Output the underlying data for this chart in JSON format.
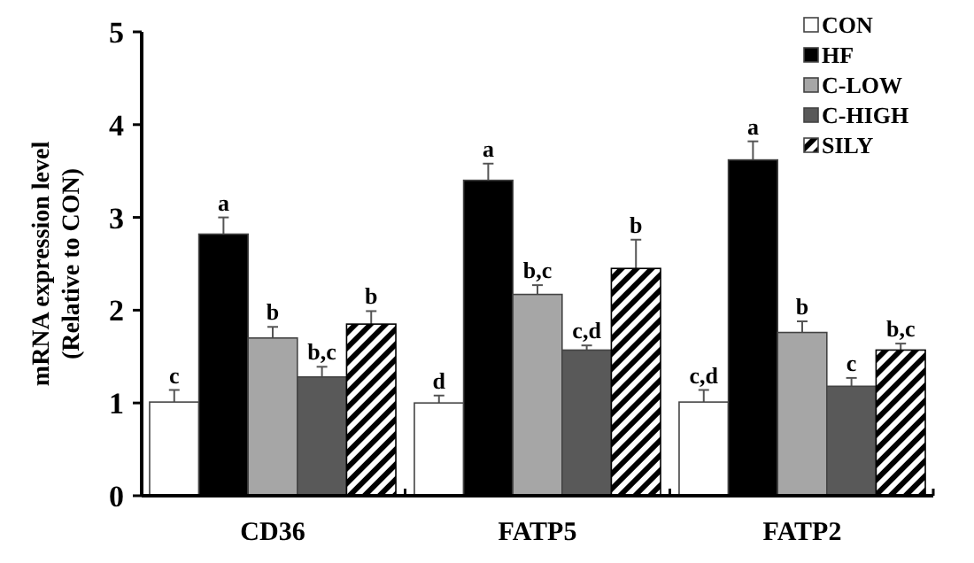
{
  "chart_data": {
    "type": "bar",
    "ylabel": "mRNA expression  level\n(Relative to CON)",
    "categories": [
      "CD36",
      "FATP5",
      "FATP2"
    ],
    "series": [
      {
        "name": "CON",
        "color": "#ffffff",
        "values": [
          1.01,
          1.0,
          1.01
        ],
        "errors": [
          0.13,
          0.08,
          0.13
        ],
        "value_labels": [
          "c",
          "d",
          "c,d"
        ]
      },
      {
        "name": "HF",
        "color": "#000000",
        "values": [
          2.82,
          3.4,
          3.62
        ],
        "errors": [
          0.18,
          0.18,
          0.2
        ],
        "value_labels": [
          "a",
          "a",
          "a"
        ]
      },
      {
        "name": "C-LOW",
        "color": "#a6a6a6",
        "values": [
          1.7,
          2.17,
          1.76
        ],
        "errors": [
          0.12,
          0.1,
          0.12
        ],
        "value_labels": [
          "b",
          "b,c",
          "b"
        ]
      },
      {
        "name": "C-HIGH",
        "color": "#595959",
        "values": [
          1.28,
          1.57,
          1.18
        ],
        "errors": [
          0.11,
          0.05,
          0.09
        ],
        "value_labels": [
          "b,c",
          "c,d",
          "c"
        ]
      },
      {
        "name": "SILY",
        "color": "#000000",
        "values": [
          1.85,
          2.45,
          1.57
        ],
        "errors": [
          0.14,
          0.31,
          0.07
        ],
        "value_labels": [
          "b",
          "b",
          "b,c"
        ]
      }
    ],
    "ylim": [
      0,
      5
    ],
    "yticks": [
      0,
      1,
      2,
      3,
      4,
      5
    ],
    "grid": false,
    "legend": "top right"
  }
}
